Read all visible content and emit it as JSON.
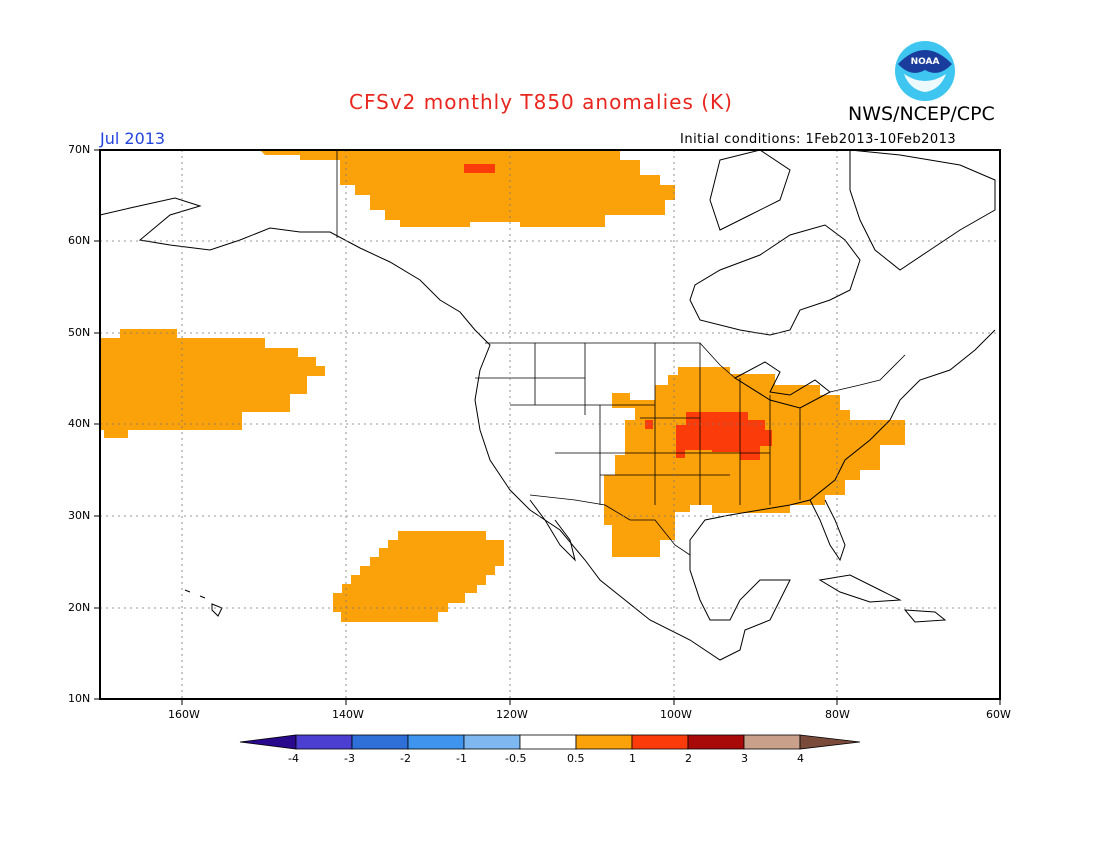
{
  "header": {
    "title": "CFSv2 monthly T850 anomalies (K)",
    "agency": "NWS/NCEP/CPC",
    "logo_text": "NOAA",
    "period": "Jul 2013",
    "initial_conditions": "Initial conditions: 1Feb2013-10Feb2013"
  },
  "axes": {
    "lat_labels": [
      "70N",
      "60N",
      "50N",
      "40N",
      "30N",
      "20N",
      "10N"
    ],
    "lon_labels": [
      "160W",
      "140W",
      "120W",
      "100W",
      "80W",
      "60W"
    ]
  },
  "colorbar": {
    "tick_labels": [
      "-4",
      "-3",
      "-2",
      "-1",
      "-0.5",
      "0.5",
      "1",
      "2",
      "3",
      "4"
    ],
    "colors": [
      "#2a0a8c",
      "#4a3fd0",
      "#2f6fd8",
      "#3f95ee",
      "#7fb8f0",
      "#ffffff",
      "#fba10a",
      "#fb3c0a",
      "#a80a0a",
      "#c9a08a",
      "#7a4a3a"
    ]
  },
  "chart_data": {
    "type": "heatmap",
    "title": "CFSv2 monthly T850 anomalies (K)",
    "subtitle": "Jul 2013",
    "lat_range": [
      10,
      70
    ],
    "lon_range": [
      -171,
      -60
    ],
    "anomaly_regions": [
      {
        "level": "0.5-1",
        "area": "Northwest Canada / Yukon-Mackenzie"
      },
      {
        "level": "1-2",
        "area": "small patch in northern Canada"
      },
      {
        "level": "0.5-1",
        "area": "North Pacific 38N-50N"
      },
      {
        "level": "0.5-1",
        "area": "Subtropical East Pacific 18N-27N"
      },
      {
        "level": "0.5-1",
        "area": "Central & Eastern United States, Texas"
      },
      {
        "level": "1-2",
        "area": "Central Plains / Midwest"
      }
    ]
  }
}
